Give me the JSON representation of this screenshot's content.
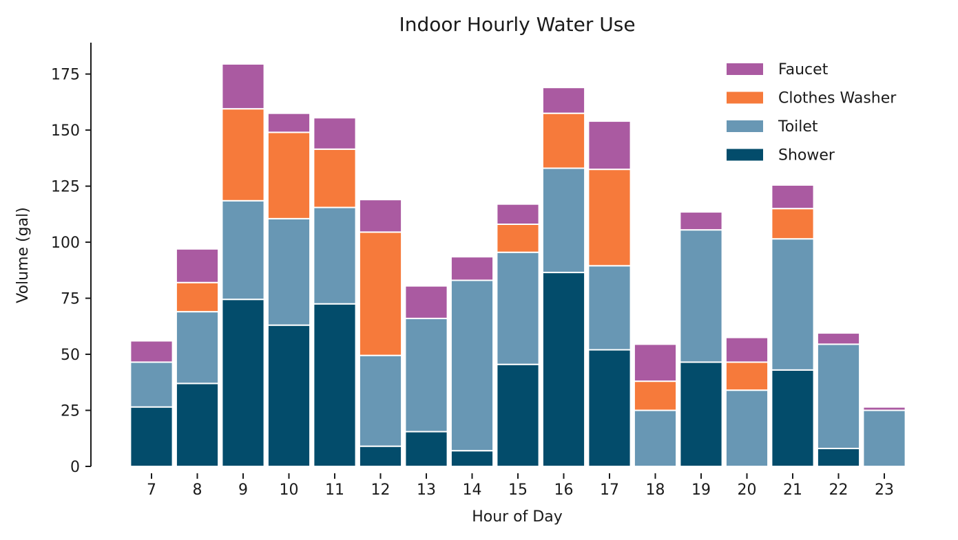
{
  "chart_data": {
    "type": "bar",
    "stacked": true,
    "title": "Indoor Hourly Water Use",
    "xlabel": "Hour of Day",
    "ylabel": "Volume (gal)",
    "ylim": [
      0,
      189
    ],
    "yticks": [
      "0",
      "25",
      "50",
      "75",
      "100",
      "125",
      "150",
      "175"
    ],
    "categories": [
      "7",
      "8",
      "9",
      "10",
      "11",
      "12",
      "13",
      "14",
      "15",
      "16",
      "17",
      "18",
      "19",
      "20",
      "21",
      "22",
      "23"
    ],
    "legend_position": "top-right",
    "grid": false,
    "series": [
      {
        "name": "Shower",
        "color": "#034c6b",
        "values": [
          26.5,
          37,
          74.5,
          63,
          72.5,
          9,
          15.5,
          7,
          45.5,
          86.5,
          52,
          0,
          46.5,
          0,
          43,
          8,
          0
        ]
      },
      {
        "name": "Toilet",
        "color": "#6897b4",
        "values": [
          20,
          32,
          44,
          47.5,
          43,
          40.5,
          50.5,
          76,
          50,
          46.5,
          37.5,
          25,
          59,
          34,
          58.5,
          46.5,
          25
        ]
      },
      {
        "name": "Clothes Washer",
        "color": "#f67a3b",
        "values": [
          0,
          13,
          41,
          38.5,
          26,
          55,
          0,
          0,
          12.5,
          24.5,
          43,
          13,
          0,
          12.5,
          13.5,
          0,
          0
        ]
      },
      {
        "name": "Faucet",
        "color": "#aa5aa1",
        "values": [
          9.5,
          15,
          20,
          8.5,
          14,
          14.5,
          14.5,
          10.5,
          9,
          11.5,
          21.5,
          16.5,
          8,
          11,
          10.5,
          5,
          1.5
        ]
      }
    ],
    "legend_order": [
      "Faucet",
      "Clothes Washer",
      "Toilet",
      "Shower"
    ]
  }
}
